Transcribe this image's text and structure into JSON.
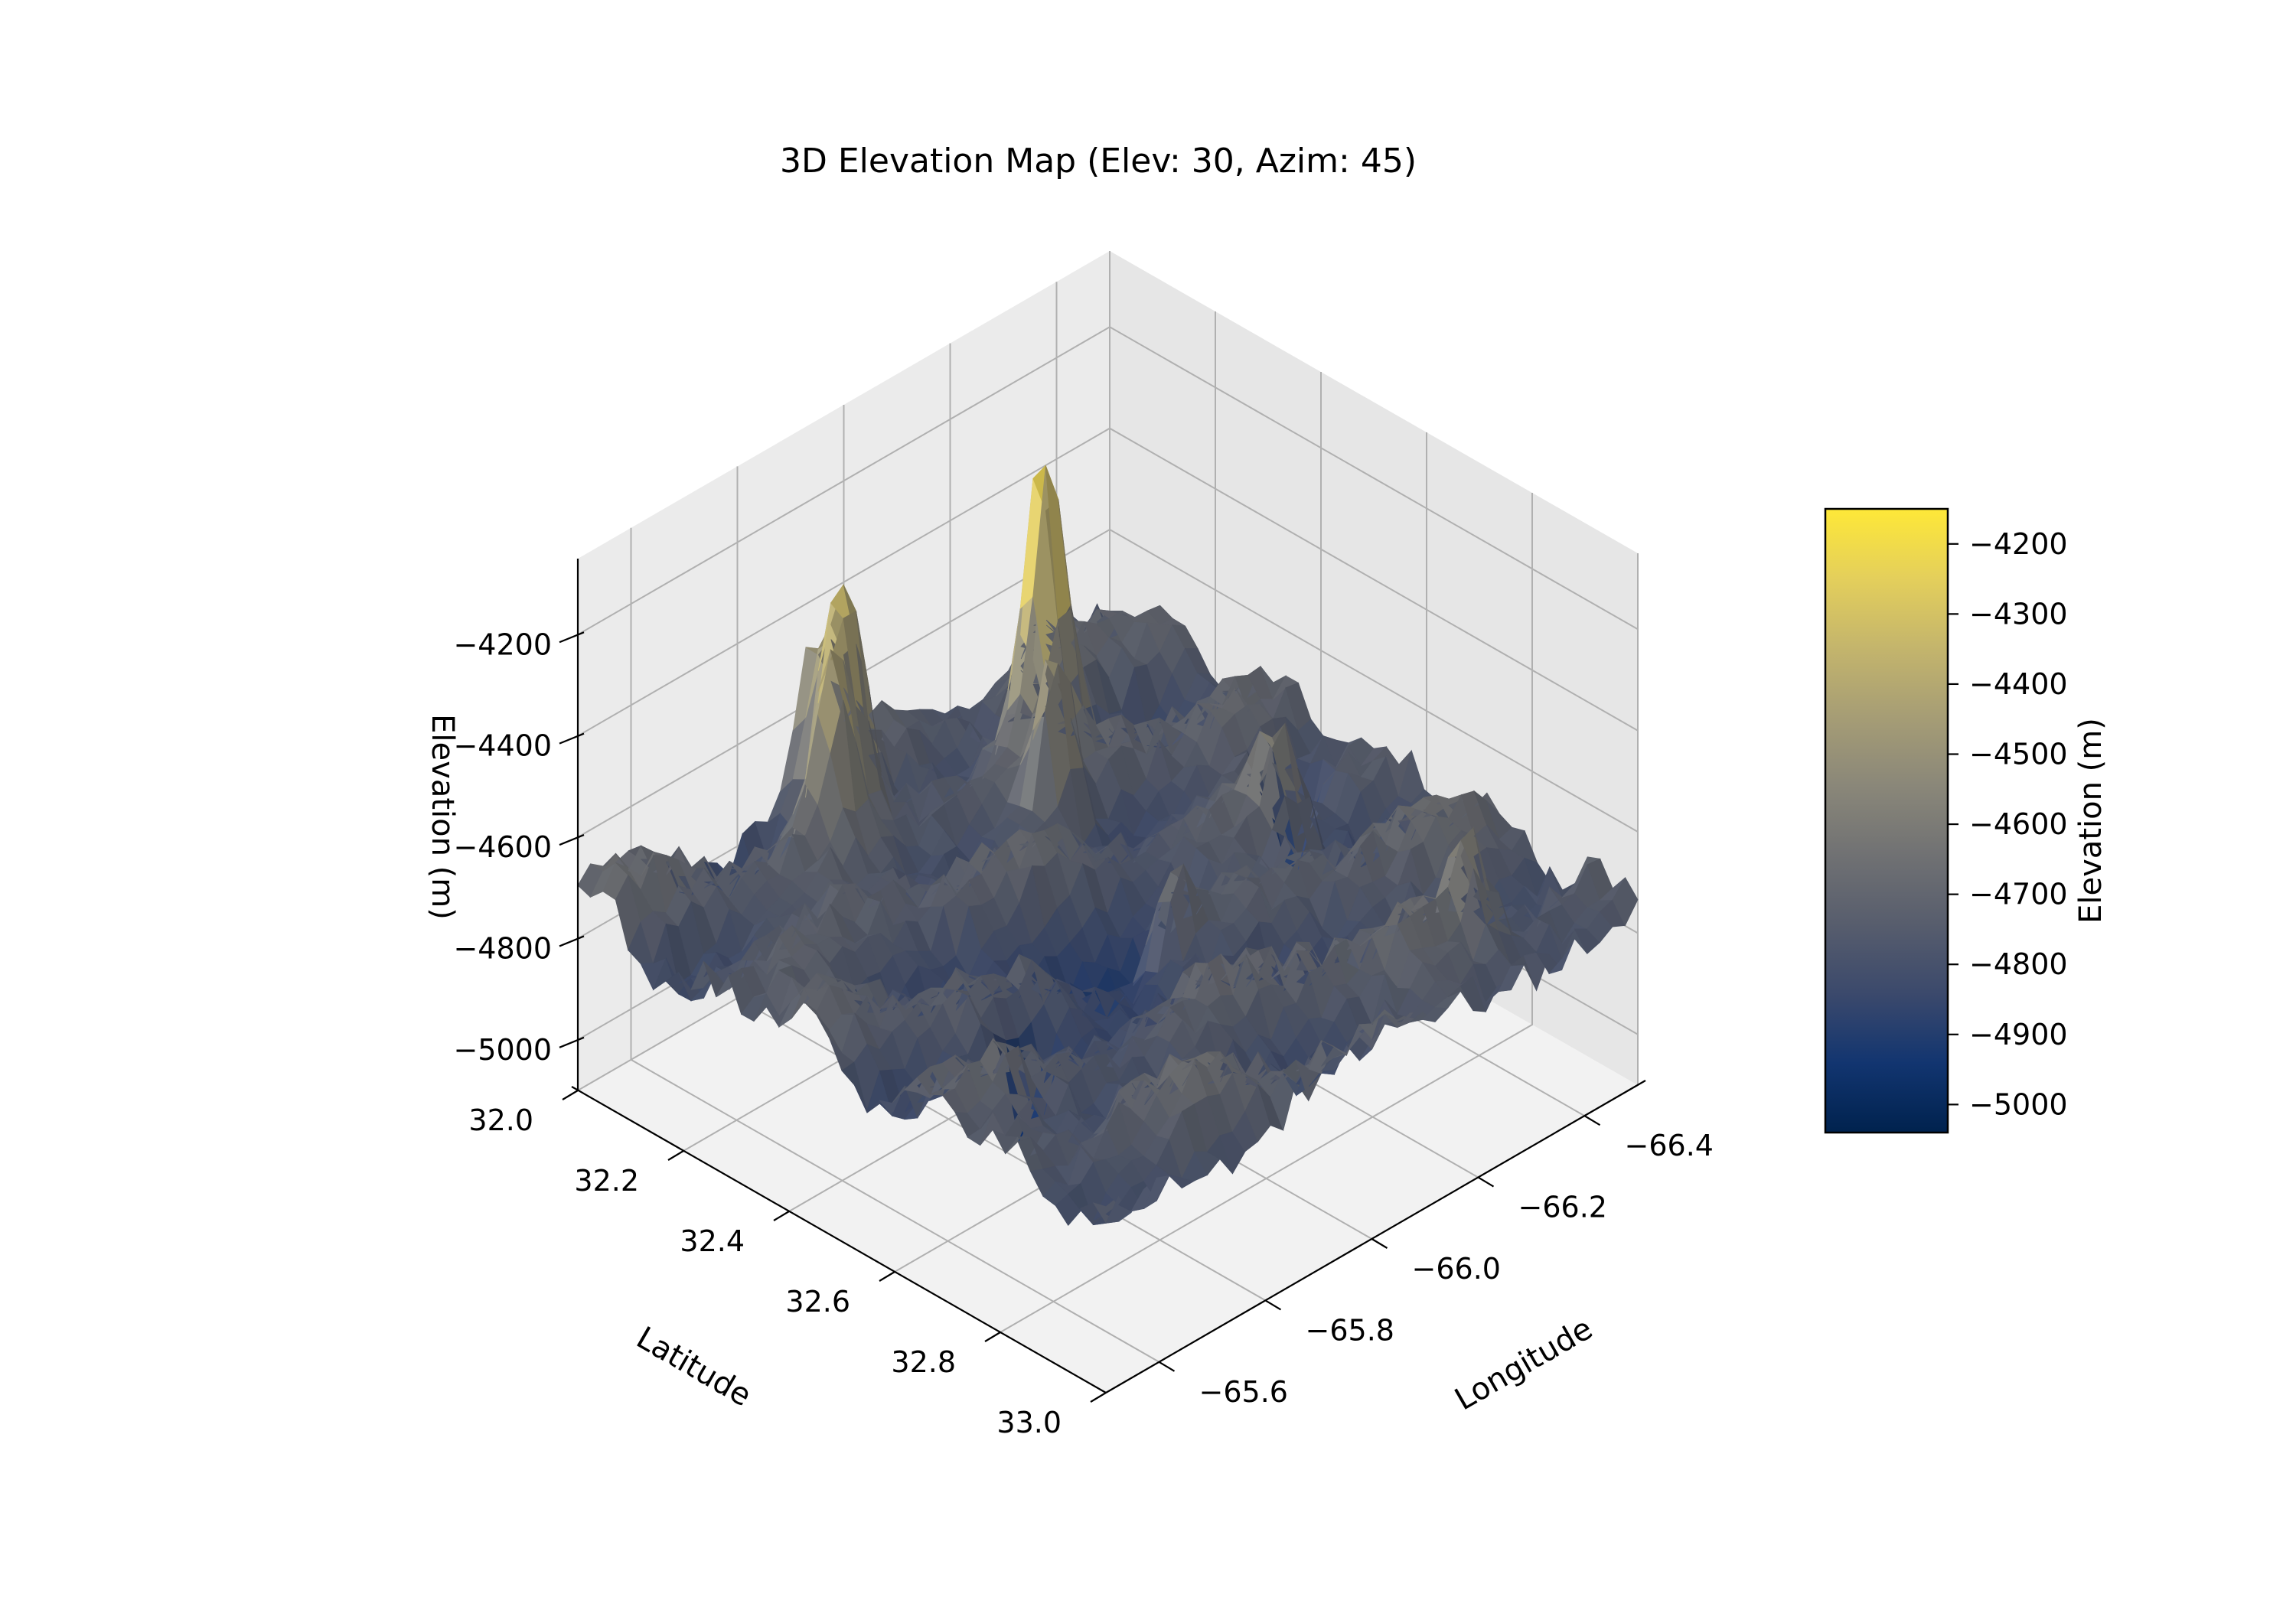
{
  "chart_data": {
    "type": "surface3d",
    "title": "3D Elevation Map (Elev: 30, Azim: 45)",
    "view": {
      "elev": 30,
      "azim": 45
    },
    "xlabel": "Latitude",
    "ylabel": "Longitude",
    "zlabel": "Elevation (m)",
    "xlim": [
      32.0,
      33.0
    ],
    "ylim": [
      -66.5,
      -65.5
    ],
    "zlim": [
      -5100,
      -4050
    ],
    "x_ticks": [
      32.0,
      32.2,
      32.4,
      32.6,
      32.8,
      33.0
    ],
    "x_tick_labels": [
      "32.0",
      "32.2",
      "32.4",
      "32.6",
      "32.8",
      "33.0"
    ],
    "y_ticks": [
      -66.4,
      -66.2,
      -66.0,
      -65.8,
      -65.6
    ],
    "y_tick_labels": [
      "−66.4",
      "−66.2",
      "−66.0",
      "−65.8",
      "−65.6"
    ],
    "z_ticks": [
      -4200,
      -4400,
      -4600,
      -4800,
      -5000
    ],
    "z_tick_labels": [
      "−4200",
      "−4400",
      "−4600",
      "−4800",
      "−5000"
    ],
    "grid": true,
    "colormap": "cividis",
    "colormap_stops": [
      "#00224e",
      "#123570",
      "#3b496c",
      "#575d6d",
      "#707173",
      "#8a8779",
      "#a69d75",
      "#c4b56c",
      "#e4cf5b",
      "#fee838"
    ],
    "colorbar": {
      "label": "Elevation (m)",
      "range": [
        -5040,
        -4150
      ],
      "ticks": [
        -4200,
        -4300,
        -4400,
        -4500,
        -4600,
        -4700,
        -4800,
        -4900,
        -5000
      ],
      "tick_labels": [
        "−4200",
        "−4300",
        "−4400",
        "−4500",
        "−4600",
        "−4700",
        "−4800",
        "−4900",
        "−5000"
      ]
    },
    "base_elevation": -4740,
    "features": [
      {
        "lat": 32.18,
        "lon": -66.2,
        "peak": -4150,
        "kind": "peak"
      },
      {
        "lat": 32.08,
        "lon": -65.92,
        "peak": -4270,
        "kind": "peak"
      },
      {
        "lat": 32.12,
        "lon": -65.86,
        "peak": -4400,
        "kind": "peak"
      },
      {
        "lat": 32.02,
        "lon": -65.94,
        "peak": -4480,
        "kind": "peak"
      },
      {
        "lat": 32.28,
        "lon": -66.12,
        "peak": -4450,
        "kind": "peak"
      },
      {
        "lat": 32.52,
        "lon": -66.3,
        "peak": -4520,
        "kind": "peak"
      },
      {
        "lat": 32.58,
        "lon": -66.05,
        "peak": -4560,
        "kind": "peak"
      },
      {
        "lat": 32.88,
        "lon": -66.3,
        "peak": -4560,
        "kind": "peak"
      },
      {
        "lat": 32.45,
        "lon": -66.4,
        "peak": -4950,
        "kind": "basin"
      },
      {
        "lat": 32.6,
        "lon": -65.75,
        "peak": -4960,
        "kind": "basin"
      }
    ]
  }
}
